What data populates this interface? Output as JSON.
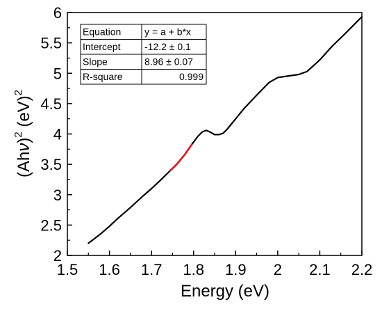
{
  "chart_data": {
    "type": "line",
    "xlabel": "Energy (eV)",
    "ylabel": {
      "pre": "(Ah",
      "nu": "ν",
      "close": ")",
      "sup1": "2",
      "mid": " (eV)",
      "sup2": "2"
    },
    "xlim": [
      1.5,
      2.2
    ],
    "ylim": [
      2,
      6
    ],
    "x_ticks": [
      "1.5",
      "1.6",
      "1.7",
      "1.8",
      "1.9",
      "2",
      "2.1",
      "2.2"
    ],
    "y_ticks": [
      "2",
      "2.5",
      "3",
      "3.5",
      "4",
      "4.5",
      "5",
      "5.5",
      "6"
    ],
    "grid": false,
    "series": [
      {
        "color": "#000000",
        "x": [
          1.55,
          1.58,
          1.6,
          1.62,
          1.65,
          1.68,
          1.7,
          1.72,
          1.745,
          1.76,
          1.78,
          1.795,
          1.81,
          1.82,
          1.83,
          1.84,
          1.85,
          1.86,
          1.87,
          1.88,
          1.9,
          1.92,
          1.95,
          1.98,
          2.0,
          2.02,
          2.05,
          2.07,
          2.1,
          2.13,
          2.16,
          2.2
        ],
        "y": [
          2.2,
          2.36,
          2.48,
          2.61,
          2.79,
          2.98,
          3.1,
          3.23,
          3.4,
          3.5,
          3.67,
          3.82,
          3.96,
          4.03,
          4.06,
          4.03,
          3.99,
          3.99,
          4.01,
          4.08,
          4.25,
          4.42,
          4.64,
          4.85,
          4.93,
          4.95,
          4.98,
          5.03,
          5.22,
          5.45,
          5.65,
          5.93
        ]
      },
      {
        "color": "#e0141c",
        "x": [
          1.745,
          1.76,
          1.78,
          1.795
        ],
        "y": [
          3.4,
          3.5,
          3.67,
          3.82
        ]
      }
    ],
    "fit_table": {
      "rows": [
        [
          "Equation",
          "y = a + b*x"
        ],
        [
          "Intercept",
          "-12.2 ± 0.1"
        ],
        [
          "Slope",
          "8.96 ± 0.07"
        ],
        [
          "R-square",
          "0.999"
        ]
      ]
    }
  }
}
